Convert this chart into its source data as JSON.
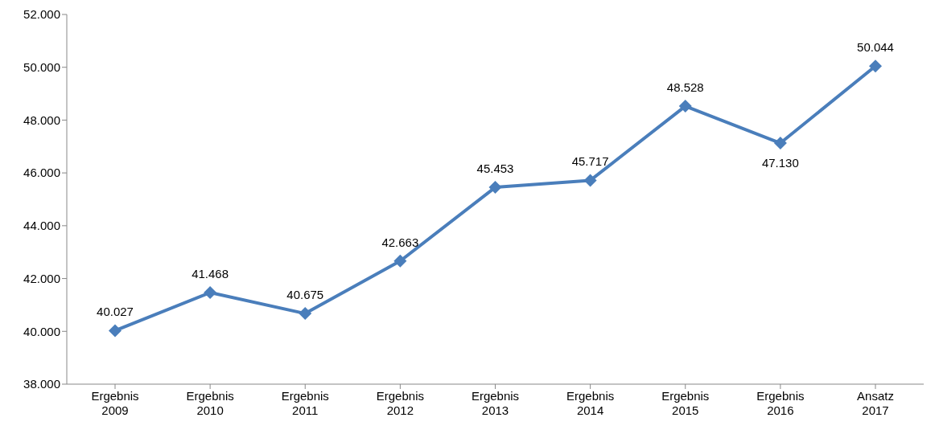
{
  "chart_data": {
    "type": "line",
    "categories": [
      "Ergebnis 2009",
      "Ergebnis 2010",
      "Ergebnis 2011",
      "Ergebnis 2012",
      "Ergebnis 2013",
      "Ergebnis 2014",
      "Ergebnis 2015",
      "Ergebnis 2016",
      "Ansatz 2017"
    ],
    "series": [
      {
        "color": "#4a7ebb",
        "values": [
          40027,
          41468,
          40675,
          42663,
          45453,
          45717,
          48528,
          47130,
          50044
        ],
        "value_labels": [
          "40.027",
          "41.468",
          "40.675",
          "42.663",
          "45.453",
          "45.717",
          "48.528",
          "47.130",
          "50.044"
        ]
      }
    ],
    "ylim": [
      38000,
      52000
    ],
    "yticks": [
      {
        "value": 38000,
        "label": "38.000"
      },
      {
        "value": 40000,
        "label": "40.000"
      },
      {
        "value": 42000,
        "label": "42.000"
      },
      {
        "value": 44000,
        "label": "44.000"
      },
      {
        "value": 46000,
        "label": "46.000"
      },
      {
        "value": 48000,
        "label": "48.000"
      },
      {
        "value": 50000,
        "label": "50.000"
      },
      {
        "value": 52000,
        "label": "52.000"
      }
    ],
    "grid": false,
    "legend": false,
    "marker": "diamond",
    "line_style": "solid"
  }
}
